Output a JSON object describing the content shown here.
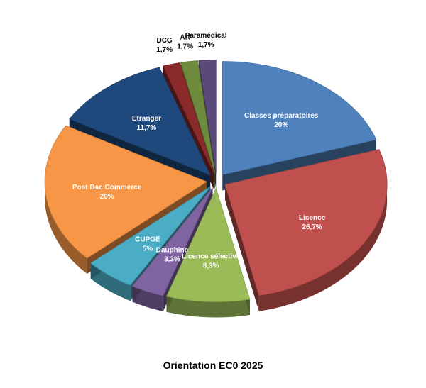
{
  "chart_data": {
    "type": "pie",
    "title": "Orientation EC0 2025",
    "slices": [
      {
        "name": "Classes préparatoires",
        "value": 20,
        "value_label": "20%",
        "color": "#4F81BD"
      },
      {
        "name": "Licence",
        "value": 26.7,
        "value_label": "26,7%",
        "color": "#C0504D"
      },
      {
        "name": "Licence sélective",
        "value": 8.3,
        "value_label": "8,3%",
        "color": "#9BBB59"
      },
      {
        "name": "Dauphine",
        "value": 3.3,
        "value_label": "3,3%",
        "color": "#8064A2"
      },
      {
        "name": "CUPGE",
        "value": 5,
        "value_label": "5%",
        "color": "#4BACC6"
      },
      {
        "name": "Post Bac Commerce",
        "value": 20,
        "value_label": "20%",
        "color": "#F79646"
      },
      {
        "name": "Etranger",
        "value": 11.7,
        "value_label": "11,7%",
        "color": "#1F497D"
      },
      {
        "name": "DCG",
        "value": 1.7,
        "value_label": "1,7%",
        "color": "#8B2A2A"
      },
      {
        "name": "Art",
        "value": 1.7,
        "value_label": "1,7%",
        "color": "#6E8B3D"
      },
      {
        "name": "Paramédical",
        "value": 1.7,
        "value_label": "1,7%",
        "color": "#5A4A7A"
      }
    ],
    "style": "3d-exploded",
    "legend": "none"
  }
}
